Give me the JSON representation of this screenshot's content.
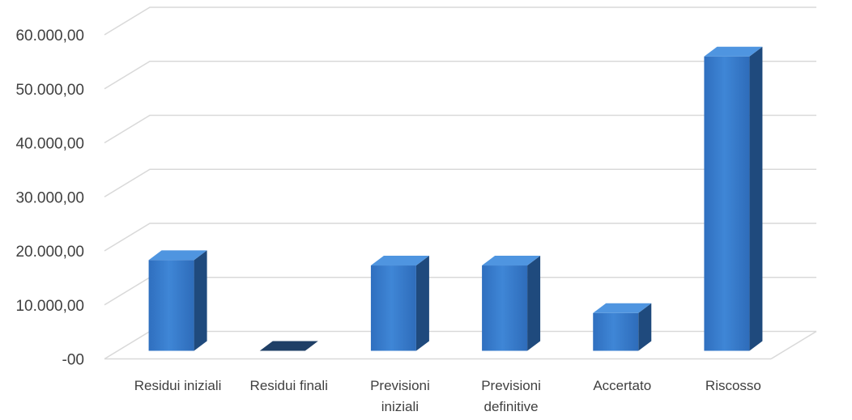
{
  "chart_data": {
    "type": "bar",
    "categories": [
      [
        "Residui iniziali"
      ],
      [
        "Residui finali"
      ],
      [
        "Previsioni",
        "iniziali"
      ],
      [
        "Previsioni",
        "definitive"
      ],
      [
        "Accertato"
      ],
      [
        "Riscosso"
      ]
    ],
    "values": [
      16800,
      0,
      15800,
      15800,
      7000,
      54500
    ],
    "ylim": [
      0,
      60000
    ],
    "yticks": [
      {
        "value": 0,
        "label": "-00"
      },
      {
        "value": 10000,
        "label": "10.000,00"
      },
      {
        "value": 20000,
        "label": "20.000,00"
      },
      {
        "value": 30000,
        "label": "30.000,00"
      },
      {
        "value": 40000,
        "label": "40.000,00"
      },
      {
        "value": 50000,
        "label": "50.000,00"
      },
      {
        "value": 60000,
        "label": "60.000,00"
      }
    ],
    "grid": true,
    "legend": "none",
    "style": "3d-column",
    "colors": {
      "front": "#3b7fd0",
      "side": "#1f4a7d",
      "top": "#4f95e0",
      "grid": "#d9d9d9"
    }
  }
}
